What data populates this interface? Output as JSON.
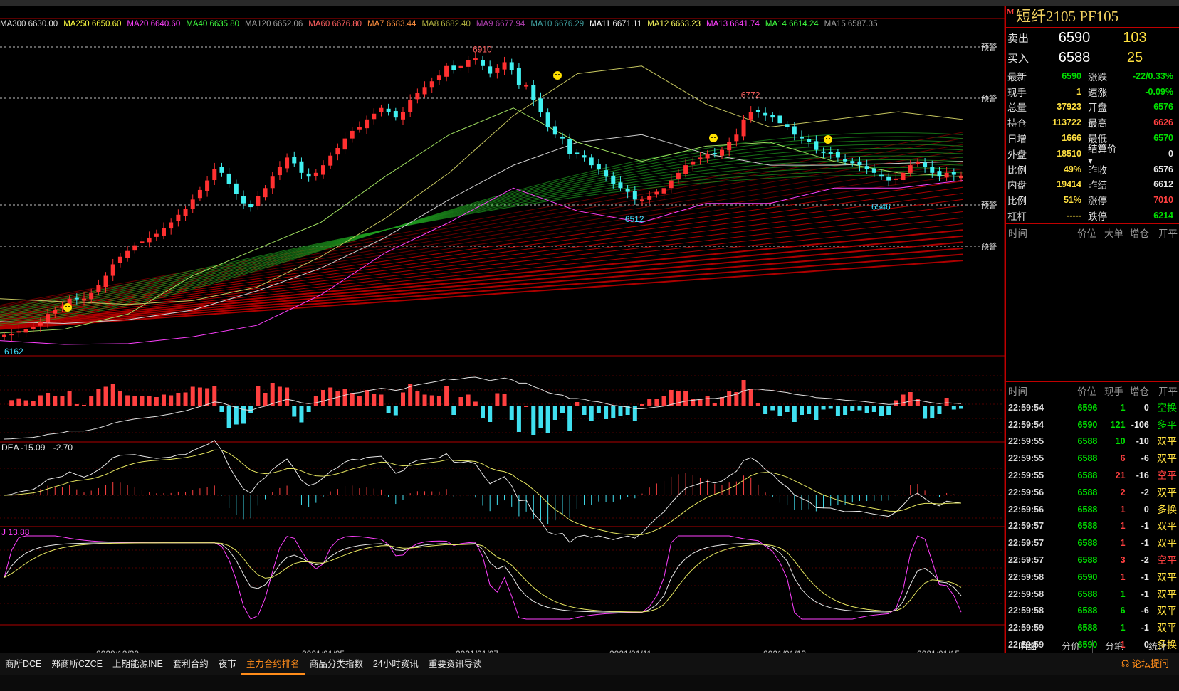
{
  "ma_legend": [
    {
      "label": "MA300 6630.00",
      "color": "#e8e8e8"
    },
    {
      "label": "MA250 6650.60",
      "color": "#ffff40"
    },
    {
      "label": "MA20 6640.60",
      "color": "#ff40ff"
    },
    {
      "label": "MA40 6635.80",
      "color": "#40ff40"
    },
    {
      "label": "MA120 6652.06",
      "color": "#a0a0a0"
    },
    {
      "label": "MA60 6676.80",
      "color": "#ff6060"
    },
    {
      "label": "MA7 6683.44",
      "color": "#ff9040"
    },
    {
      "label": "MA8 6682.40",
      "color": "#b0b040"
    },
    {
      "label": "MA9 6677.94",
      "color": "#b040b0"
    },
    {
      "label": "MA10 6676.29",
      "color": "#40a0a0"
    },
    {
      "label": "MA11 6671.11",
      "color": "#ffffff"
    },
    {
      "label": "MA12 6663.23",
      "color": "#ffff60"
    },
    {
      "label": "MA13 6641.74",
      "color": "#ff40ff"
    },
    {
      "label": "MA14 6614.24",
      "color": "#40ff40"
    },
    {
      "label": "MA15 6587.35",
      "color": "#a0a0a0"
    }
  ],
  "price_labels": {
    "high": "6910",
    "low_start": "6162",
    "low_mid": "6512",
    "high_mid": "6772",
    "low_right": "6546"
  },
  "warn_label": "预警",
  "macd_label": "DEA -15.09",
  "macd_value": "-2.70",
  "kdj_label": "J 13.88",
  "dates": [
    "2020/12/30",
    "2021/01/05",
    "2021/01/07",
    "2021/01/11",
    "2021/01/13",
    "2021/01/15"
  ],
  "chart_data": {
    "type": "candlestick",
    "symbol": "短纤2105",
    "yticks": [],
    "annotations": [
      {
        "text": "6910",
        "kind": "high"
      },
      {
        "text": "6162",
        "kind": "low"
      },
      {
        "text": "6512",
        "kind": "low"
      },
      {
        "text": "6772",
        "kind": "high"
      },
      {
        "text": "6546",
        "kind": "low"
      }
    ],
    "closes": [
      6175,
      6178,
      6185,
      6190,
      6195,
      6210,
      6230,
      6240,
      6250,
      6270,
      6270,
      6270,
      6285,
      6305,
      6330,
      6360,
      6380,
      6395,
      6410,
      6420,
      6430,
      6440,
      6455,
      6470,
      6490,
      6505,
      6530,
      6555,
      6580,
      6610,
      6600,
      6570,
      6545,
      6520,
      6510,
      6540,
      6560,
      6590,
      6615,
      6640,
      6625,
      6600,
      6590,
      6600,
      6620,
      6645,
      6665,
      6690,
      6710,
      6720,
      6740,
      6755,
      6770,
      6760,
      6745,
      6760,
      6790,
      6810,
      6825,
      6840,
      6855,
      6880,
      6870,
      6880,
      6895,
      6900,
      6880,
      6860,
      6875,
      6890,
      6870,
      6830,
      6830,
      6790,
      6760,
      6720,
      6700,
      6690,
      6650,
      6650,
      6640,
      6620,
      6610,
      6590,
      6570,
      6560,
      6550,
      6530,
      6530,
      6540,
      6550,
      6560,
      6580,
      6600,
      6620,
      6630,
      6640,
      6650,
      6650,
      6660,
      6680,
      6700,
      6740,
      6760,
      6760,
      6750,
      6745,
      6730,
      6720,
      6700,
      6690,
      6680,
      6660,
      6655,
      6650,
      6640,
      6630,
      6625,
      6620,
      6610,
      6600,
      6590,
      6580,
      6585,
      6600,
      6620,
      6630,
      6615,
      6600,
      6590,
      6600,
      6595,
      6590
    ]
  },
  "right_panel": {
    "title": "短纤2105  PF105",
    "mflag": "M",
    "sell": {
      "label": "卖出",
      "price": "6590",
      "vol": "103"
    },
    "buy": {
      "label": "买入",
      "price": "6588",
      "vol": "25"
    },
    "stats": [
      {
        "k1": "最新",
        "v1": "6590",
        "c1": "#00e000",
        "k2": "涨跌",
        "v2": "-22/0.33%",
        "c2": "#00e000"
      },
      {
        "k1": "现手",
        "v1": "1",
        "c1": "#ffe040",
        "k2": "速涨",
        "v2": "-0.09%",
        "c2": "#00e000"
      },
      {
        "k1": "总量",
        "v1": "37923",
        "c1": "#ffe040",
        "k2": "开盘",
        "v2": "6576",
        "c2": "#00e000"
      },
      {
        "k1": "持仓",
        "v1": "113722",
        "c1": "#ffe040",
        "k2": "最高",
        "v2": "6626",
        "c2": "#ff4040"
      },
      {
        "k1": "日增",
        "v1": "1666",
        "c1": "#ffe040",
        "k2": "最低",
        "v2": "6570",
        "c2": "#00e000"
      },
      {
        "k1": "外盘",
        "v1": "18510",
        "c1": "#ffe040",
        "k2": "结算价▾",
        "v2": "0",
        "c2": "#e8e8e8"
      },
      {
        "k1": "比例",
        "v1": "49%",
        "c1": "#ffe040",
        "k2": "昨收",
        "v2": "6576",
        "c2": "#e8e8e8"
      },
      {
        "k1": "内盘",
        "v1": "19414",
        "c1": "#ffe040",
        "k2": "昨结",
        "v2": "6612",
        "c2": "#e8e8e8"
      },
      {
        "k1": "比例",
        "v1": "51%",
        "c1": "#ffe040",
        "k2": "涨停",
        "v2": "7010",
        "c2": "#ff4040"
      },
      {
        "k1": "杠杆",
        "v1": "-----",
        "c1": "#ffe040",
        "k2": "跌停",
        "v2": "6214",
        "c2": "#00e000"
      }
    ],
    "big_header": [
      "时间",
      "价位",
      "大单",
      "增仓",
      "开平"
    ],
    "trade_header": [
      "时间",
      "价位",
      "现手",
      "增仓",
      "开平"
    ],
    "trades": [
      {
        "t": "22:59:54",
        "p": "6596",
        "q": "1",
        "qc": "#00e000",
        "c": "0",
        "k": "空换",
        "kc": "#00e000"
      },
      {
        "t": "22:59:54",
        "p": "6590",
        "q": "121",
        "qc": "#00e000",
        "c": "-106",
        "k": "多平",
        "kc": "#00e000"
      },
      {
        "t": "22:59:55",
        "p": "6588",
        "q": "10",
        "qc": "#00e000",
        "c": "-10",
        "k": "双平",
        "kc": "#ffe040"
      },
      {
        "t": "22:59:55",
        "p": "6588",
        "q": "6",
        "qc": "#ff4040",
        "c": "-6",
        "k": "双平",
        "kc": "#ffe040"
      },
      {
        "t": "22:59:55",
        "p": "6588",
        "q": "21",
        "qc": "#ff4040",
        "c": "-16",
        "k": "空平",
        "kc": "#ff4040"
      },
      {
        "t": "22:59:56",
        "p": "6588",
        "q": "2",
        "qc": "#ff4040",
        "c": "-2",
        "k": "双平",
        "kc": "#ffe040"
      },
      {
        "t": "22:59:56",
        "p": "6588",
        "q": "1",
        "qc": "#ff4040",
        "c": "0",
        "k": "多换",
        "kc": "#ffe040"
      },
      {
        "t": "22:59:57",
        "p": "6588",
        "q": "1",
        "qc": "#ff4040",
        "c": "-1",
        "k": "双平",
        "kc": "#ffe040"
      },
      {
        "t": "22:59:57",
        "p": "6588",
        "q": "1",
        "qc": "#ff4040",
        "c": "-1",
        "k": "双平",
        "kc": "#ffe040"
      },
      {
        "t": "22:59:57",
        "p": "6588",
        "q": "3",
        "qc": "#ff4040",
        "c": "-2",
        "k": "空平",
        "kc": "#ff4040"
      },
      {
        "t": "22:59:58",
        "p": "6590",
        "q": "1",
        "qc": "#ff4040",
        "c": "-1",
        "k": "双平",
        "kc": "#ffe040"
      },
      {
        "t": "22:59:58",
        "p": "6588",
        "q": "1",
        "qc": "#00e000",
        "c": "-1",
        "k": "双平",
        "kc": "#ffe040"
      },
      {
        "t": "22:59:58",
        "p": "6588",
        "q": "6",
        "qc": "#00e000",
        "c": "-6",
        "k": "双平",
        "kc": "#ffe040"
      },
      {
        "t": "22:59:59",
        "p": "6588",
        "q": "1",
        "qc": "#00e000",
        "c": "-1",
        "k": "双平",
        "kc": "#ffe040"
      },
      {
        "t": "22:59:59",
        "p": "6590",
        "q": "1",
        "qc": "#ff4040",
        "c": "0",
        "k": "多换",
        "kc": "#ffe040"
      }
    ],
    "tabs": [
      "明细",
      "分价",
      "分笔",
      "统计"
    ]
  },
  "bottom_tabs": [
    "商所DCE",
    "郑商所CZCE",
    "上期能源INE",
    "套利合约",
    "夜市",
    "主力合约排名",
    "商品分类指数",
    "24小时资讯",
    "重要资讯导读"
  ],
  "bottom_active": "主力合约排名",
  "forum": "论坛提问"
}
